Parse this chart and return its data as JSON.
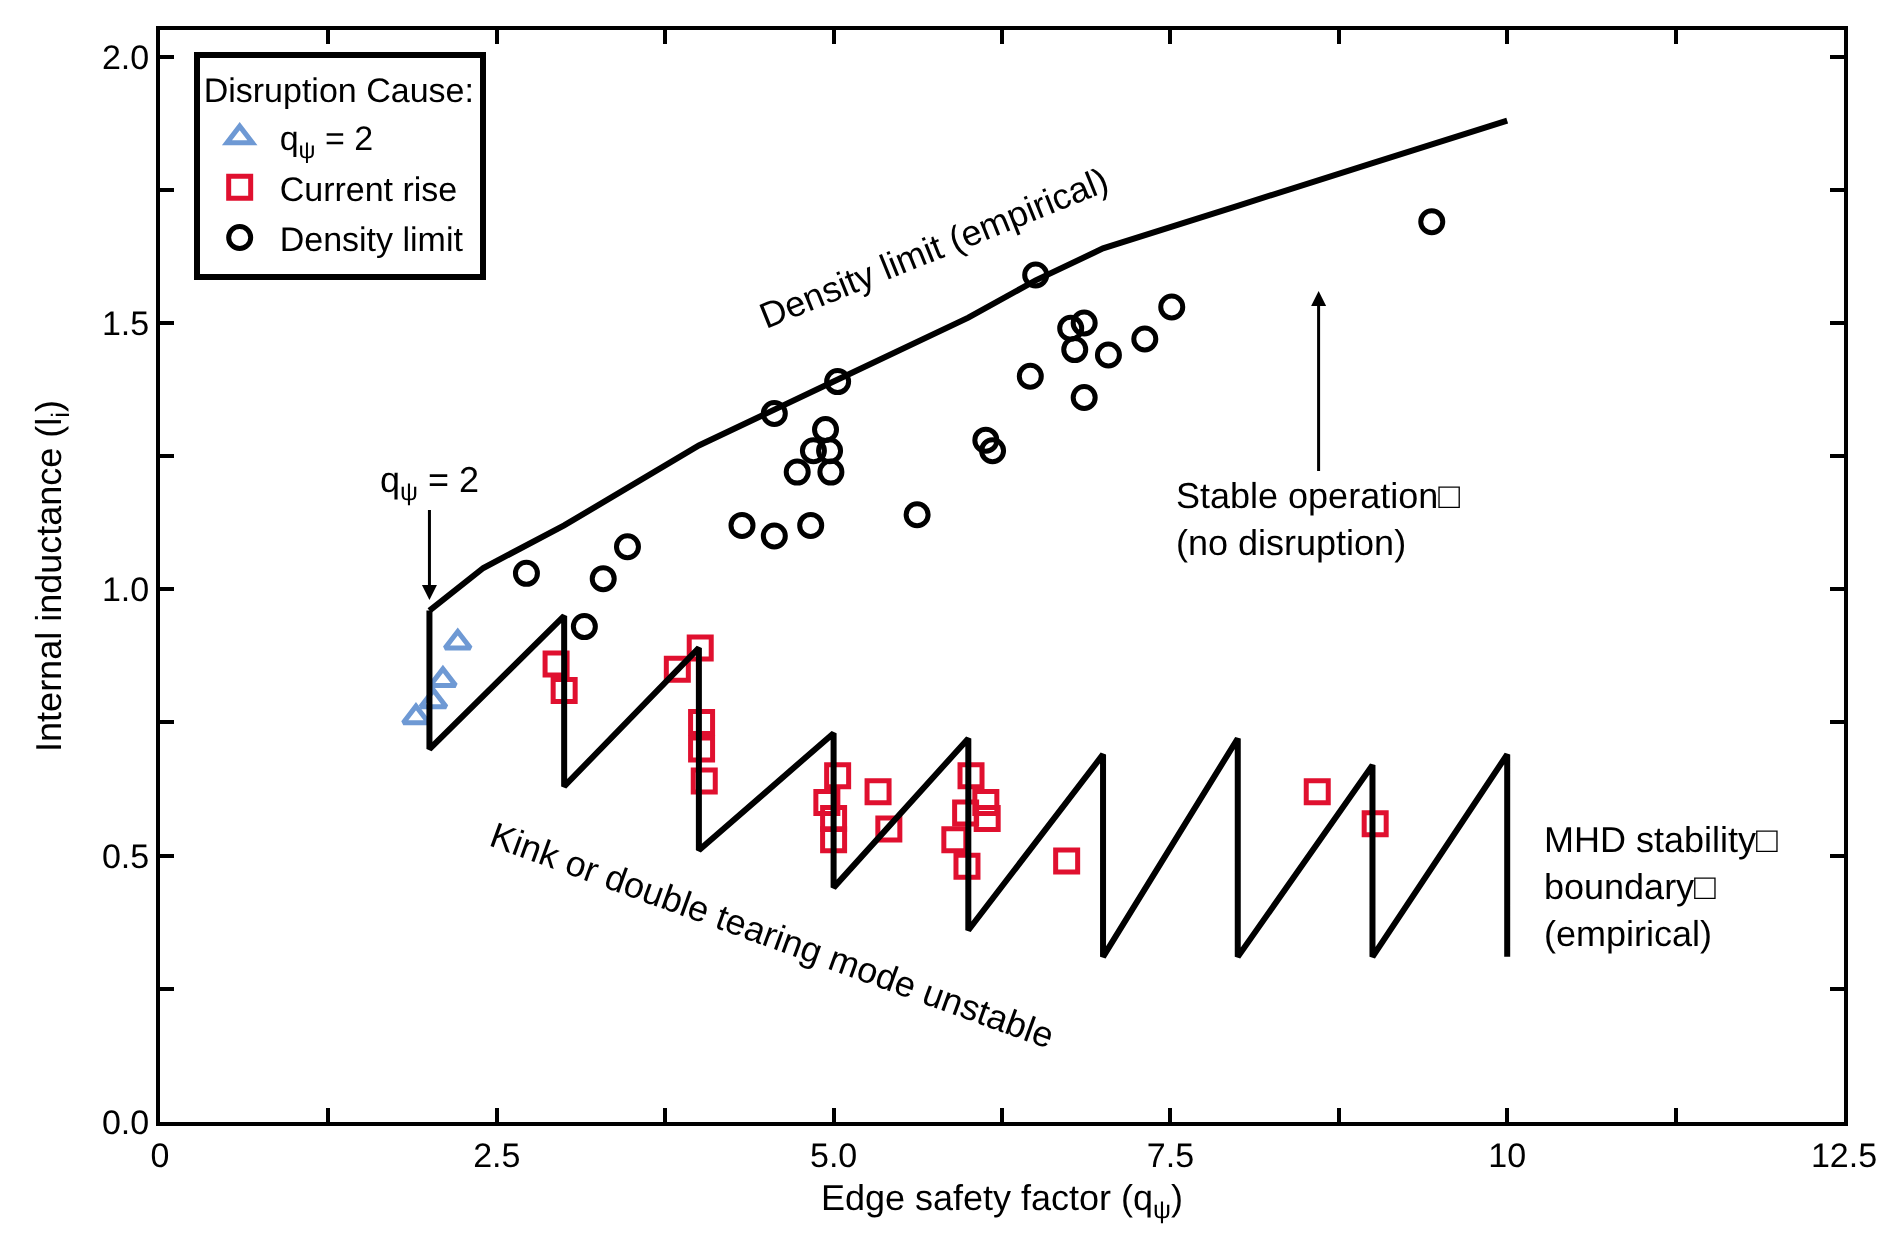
{
  "chart_data": {
    "type": "scatter",
    "xlabel": "Edge safety factor (q$_{ψ}$)",
    "ylabel": "Internal inductance (l$_{i}$)",
    "legend_title": "Disruption Cause:",
    "legend": "top left",
    "xlim": [
      0,
      12.5
    ],
    "xticks": [
      0,
      {
        "value": 1.25,
        "label": null
      },
      2.5,
      {
        "value": 3.75,
        "label": null
      },
      {
        "value": 5,
        "label": "5.0"
      },
      {
        "value": 6.25,
        "label": null
      },
      7.5,
      {
        "value": 8.75,
        "label": null
      },
      10,
      {
        "value": 11.25,
        "label": null
      },
      12.5
    ],
    "ylim": [
      0,
      2.05
    ],
    "yticks": [
      {
        "value": 0,
        "label": "0.0"
      },
      {
        "value": 0.25,
        "label": null
      },
      0.5,
      {
        "value": 0.75,
        "label": null
      },
      {
        "value": 1,
        "label": "1.0"
      },
      {
        "value": 1.25,
        "label": null
      },
      1.5,
      {
        "value": 1.75,
        "label": null
      },
      {
        "value": 2,
        "label": "2.0"
      }
    ],
    "series": [
      {
        "name": "q$_{ψ}$ = 2",
        "color": "#6e99d4",
        "marker": "triangle",
        "x": [
          1.9,
          2.03,
          2.1,
          2.21
        ],
        "values": [
          0.76,
          0.79,
          0.83,
          0.9
        ]
      },
      {
        "name": "Current rise",
        "color": "#e0102f",
        "marker": "square",
        "x": [
          2.94,
          3.0,
          3.84,
          4.01,
          4.02,
          4.02,
          4.04,
          5.03,
          4.95,
          5.0,
          5.0,
          5.33,
          5.41,
          6.02,
          6.13,
          5.98,
          6.14,
          5.9,
          5.99,
          6.73,
          8.59,
          9.02
        ],
        "values": [
          0.86,
          0.81,
          0.85,
          0.89,
          0.75,
          0.7,
          0.64,
          0.65,
          0.6,
          0.57,
          0.53,
          0.62,
          0.55,
          0.65,
          0.6,
          0.58,
          0.57,
          0.53,
          0.48,
          0.49,
          0.62,
          0.56
        ]
      },
      {
        "name": "Density limit",
        "color": "#000000",
        "marker": "circle",
        "x": [
          2.72,
          3.29,
          3.47,
          3.15,
          4.32,
          4.56,
          4.83,
          4.73,
          4.98,
          4.85,
          4.97,
          4.94,
          4.56,
          5.03,
          5.62,
          6.13,
          6.18,
          6.5,
          6.46,
          6.76,
          6.86,
          6.79,
          6.86,
          7.04,
          7.31,
          7.51,
          9.44
        ],
        "values": [
          1.03,
          1.02,
          1.08,
          0.93,
          1.12,
          1.1,
          1.12,
          1.22,
          1.22,
          1.26,
          1.26,
          1.3,
          1.33,
          1.39,
          1.14,
          1.28,
          1.26,
          1.59,
          1.4,
          1.49,
          1.5,
          1.45,
          1.36,
          1.44,
          1.47,
          1.53,
          1.69
        ]
      },
      {
        "type": "line",
        "color": "#000000",
        "marker": "none",
        "x": [
          2,
          2.4,
          3,
          4,
          5,
          6,
          6.5,
          7,
          8,
          9,
          10
        ],
        "values": [
          0.96,
          1.04,
          1.12,
          1.27,
          1.39,
          1.51,
          1.58,
          1.64,
          1.72,
          1.8,
          1.88
        ]
      },
      {
        "type": "line",
        "color": "#000000",
        "marker": "none",
        "x": [
          2,
          2,
          3,
          3,
          4,
          4,
          5,
          5,
          6,
          6,
          7,
          7,
          8,
          8,
          8,
          9,
          9,
          10,
          10
        ],
        "values": [
          0.96,
          0.7,
          0.95,
          0.63,
          0.89,
          0.51,
          0.73,
          0.44,
          0.72,
          0.36,
          0.69,
          0.31,
          0.72,
          0.67,
          0.31,
          0.67,
          0.31,
          0.69,
          0.31
        ]
      }
    ],
    "annotations": [
      "Density limit (empirical)",
      "Kink or double tearing mode unstable",
      {
        "text": "q$_{ψ}$ = 2",
        "x": 2,
        "y": 0.98
      },
      "Stable operation□\n(no disruption)",
      "MHD stability□\nboundary□\n(empirical)"
    ]
  }
}
